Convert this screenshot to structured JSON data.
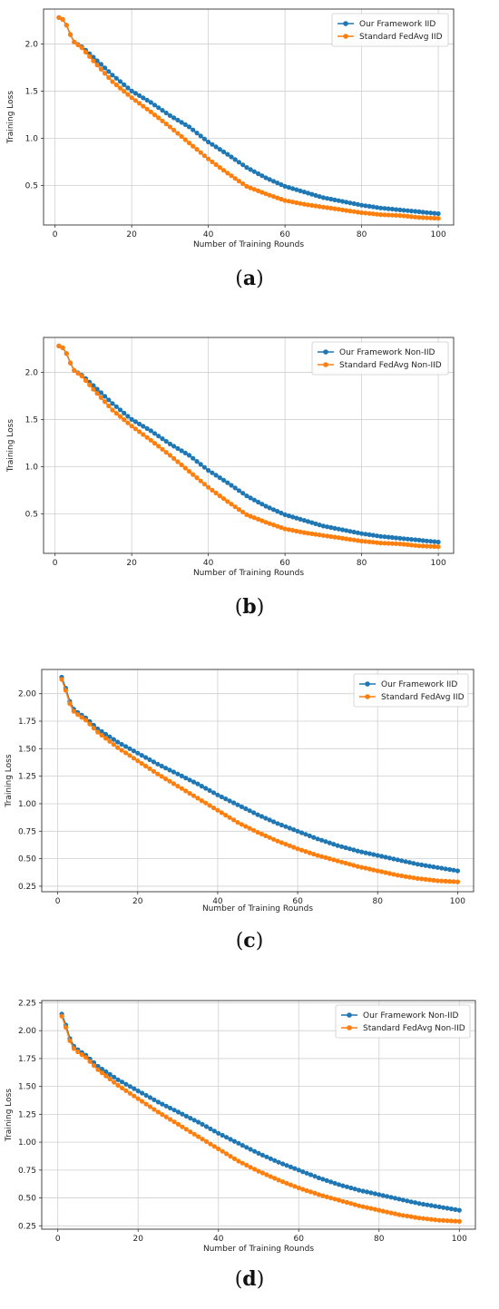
{
  "colors": {
    "series_a": "#1f77b4",
    "series_b": "#ff7f0e",
    "grid": "#cfcfcf",
    "axes": "#333333"
  },
  "captions": [
    "a",
    "b",
    "c",
    "d"
  ],
  "chart_data": [
    {
      "type": "line",
      "caption": "a",
      "xlabel": "Number of Training Rounds",
      "ylabel": "Training Loss",
      "xlim": [
        -3,
        104
      ],
      "ylim": [
        0.08,
        2.37
      ],
      "xticks": [
        0,
        20,
        40,
        60,
        80,
        100
      ],
      "yticks": [
        0.5,
        1.0,
        1.5,
        2.0
      ],
      "ytick_labels": [
        "0.5",
        "1.0",
        "1.5",
        "2.0"
      ],
      "grid": true,
      "legend_position": "top-right",
      "x_range": [
        1,
        100
      ],
      "series": [
        {
          "name": "Our Framework IID",
          "color": "#1f77b4",
          "marker": "circle",
          "anchors": [
            [
              1,
              2.28
            ],
            [
              2,
              2.26
            ],
            [
              3,
              2.2
            ],
            [
              4,
              2.1
            ],
            [
              5,
              2.02
            ],
            [
              7,
              1.97
            ],
            [
              10,
              1.86
            ],
            [
              15,
              1.67
            ],
            [
              20,
              1.5
            ],
            [
              25,
              1.38
            ],
            [
              30,
              1.24
            ],
            [
              35,
              1.12
            ],
            [
              40,
              0.96
            ],
            [
              45,
              0.83
            ],
            [
              50,
              0.69
            ],
            [
              55,
              0.58
            ],
            [
              60,
              0.49
            ],
            [
              65,
              0.43
            ],
            [
              70,
              0.37
            ],
            [
              75,
              0.33
            ],
            [
              80,
              0.29
            ],
            [
              85,
              0.26
            ],
            [
              90,
              0.24
            ],
            [
              95,
              0.22
            ],
            [
              100,
              0.2
            ]
          ]
        },
        {
          "name": "Standard FedAvg IID",
          "color": "#ff7f0e",
          "marker": "circle",
          "anchors": [
            [
              1,
              2.28
            ],
            [
              2,
              2.26
            ],
            [
              3,
              2.2
            ],
            [
              4,
              2.1
            ],
            [
              5,
              2.02
            ],
            [
              7,
              1.96
            ],
            [
              10,
              1.82
            ],
            [
              15,
              1.6
            ],
            [
              20,
              1.43
            ],
            [
              25,
              1.28
            ],
            [
              30,
              1.12
            ],
            [
              35,
              0.95
            ],
            [
              40,
              0.78
            ],
            [
              45,
              0.63
            ],
            [
              50,
              0.49
            ],
            [
              55,
              0.41
            ],
            [
              60,
              0.34
            ],
            [
              65,
              0.3
            ],
            [
              70,
              0.27
            ],
            [
              75,
              0.24
            ],
            [
              80,
              0.21
            ],
            [
              85,
              0.19
            ],
            [
              90,
              0.18
            ],
            [
              95,
              0.16
            ],
            [
              100,
              0.15
            ]
          ]
        }
      ]
    },
    {
      "type": "line",
      "caption": "b",
      "xlabel": "Number of Training Rounds",
      "ylabel": "Training Loss",
      "xlim": [
        -3,
        104
      ],
      "ylim": [
        0.08,
        2.37
      ],
      "xticks": [
        0,
        20,
        40,
        60,
        80,
        100
      ],
      "yticks": [
        0.5,
        1.0,
        1.5,
        2.0
      ],
      "ytick_labels": [
        "0.5",
        "1.0",
        "1.5",
        "2.0"
      ],
      "grid": true,
      "legend_position": "top-right",
      "x_range": [
        1,
        100
      ],
      "series": [
        {
          "name": "Our Framework Non-IID",
          "color": "#1f77b4",
          "marker": "circle",
          "anchors": [
            [
              1,
              2.28
            ],
            [
              2,
              2.26
            ],
            [
              3,
              2.2
            ],
            [
              4,
              2.1
            ],
            [
              5,
              2.02
            ],
            [
              7,
              1.97
            ],
            [
              10,
              1.86
            ],
            [
              15,
              1.67
            ],
            [
              20,
              1.5
            ],
            [
              25,
              1.38
            ],
            [
              30,
              1.24
            ],
            [
              35,
              1.12
            ],
            [
              40,
              0.96
            ],
            [
              45,
              0.83
            ],
            [
              50,
              0.69
            ],
            [
              55,
              0.58
            ],
            [
              60,
              0.49
            ],
            [
              65,
              0.43
            ],
            [
              70,
              0.37
            ],
            [
              75,
              0.33
            ],
            [
              80,
              0.29
            ],
            [
              85,
              0.26
            ],
            [
              90,
              0.24
            ],
            [
              95,
              0.22
            ],
            [
              100,
              0.2
            ]
          ]
        },
        {
          "name": "Standard FedAvg Non-IID",
          "color": "#ff7f0e",
          "marker": "circle",
          "anchors": [
            [
              1,
              2.28
            ],
            [
              2,
              2.26
            ],
            [
              3,
              2.2
            ],
            [
              4,
              2.1
            ],
            [
              5,
              2.02
            ],
            [
              7,
              1.96
            ],
            [
              10,
              1.82
            ],
            [
              15,
              1.6
            ],
            [
              20,
              1.43
            ],
            [
              25,
              1.28
            ],
            [
              30,
              1.12
            ],
            [
              35,
              0.95
            ],
            [
              40,
              0.78
            ],
            [
              45,
              0.63
            ],
            [
              50,
              0.49
            ],
            [
              55,
              0.41
            ],
            [
              60,
              0.34
            ],
            [
              65,
              0.3
            ],
            [
              70,
              0.27
            ],
            [
              75,
              0.24
            ],
            [
              80,
              0.21
            ],
            [
              85,
              0.19
            ],
            [
              90,
              0.18
            ],
            [
              95,
              0.16
            ],
            [
              100,
              0.15
            ]
          ]
        }
      ]
    },
    {
      "type": "line",
      "caption": "c",
      "xlabel": "Number of Training Rounds",
      "ylabel": "Training Loss",
      "xlim": [
        -4,
        104
      ],
      "ylim": [
        0.2,
        2.22
      ],
      "xticks": [
        0,
        20,
        40,
        60,
        80,
        100
      ],
      "yticks": [
        0.25,
        0.5,
        0.75,
        1.0,
        1.25,
        1.5,
        1.75,
        2.0
      ],
      "ytick_labels": [
        "0.25",
        "0.50",
        "0.75",
        "1.00",
        "1.25",
        "1.50",
        "1.75",
        "2.00"
      ],
      "grid": true,
      "legend_position": "top-right",
      "x_range": [
        1,
        100
      ],
      "series": [
        {
          "name": "Our Framework IID",
          "color": "#1f77b4",
          "marker": "circle",
          "anchors": [
            [
              1,
              2.15
            ],
            [
              2,
              2.05
            ],
            [
              3,
              1.93
            ],
            [
              4,
              1.86
            ],
            [
              5,
              1.83
            ],
            [
              7,
              1.78
            ],
            [
              10,
              1.68
            ],
            [
              15,
              1.56
            ],
            [
              20,
              1.46
            ],
            [
              25,
              1.36
            ],
            [
              30,
              1.27
            ],
            [
              35,
              1.18
            ],
            [
              40,
              1.08
            ],
            [
              45,
              0.99
            ],
            [
              50,
              0.9
            ],
            [
              55,
              0.82
            ],
            [
              60,
              0.75
            ],
            [
              65,
              0.68
            ],
            [
              70,
              0.62
            ],
            [
              75,
              0.57
            ],
            [
              80,
              0.53
            ],
            [
              85,
              0.49
            ],
            [
              90,
              0.45
            ],
            [
              95,
              0.42
            ],
            [
              100,
              0.39
            ]
          ]
        },
        {
          "name": "Standard FedAvg IID",
          "color": "#ff7f0e",
          "marker": "circle",
          "anchors": [
            [
              1,
              2.13
            ],
            [
              2,
              2.03
            ],
            [
              3,
              1.91
            ],
            [
              4,
              1.84
            ],
            [
              5,
              1.81
            ],
            [
              7,
              1.76
            ],
            [
              10,
              1.65
            ],
            [
              15,
              1.51
            ],
            [
              20,
              1.39
            ],
            [
              25,
              1.27
            ],
            [
              30,
              1.16
            ],
            [
              35,
              1.05
            ],
            [
              40,
              0.94
            ],
            [
              45,
              0.83
            ],
            [
              50,
              0.74
            ],
            [
              55,
              0.66
            ],
            [
              60,
              0.59
            ],
            [
              65,
              0.53
            ],
            [
              70,
              0.48
            ],
            [
              75,
              0.43
            ],
            [
              80,
              0.39
            ],
            [
              85,
              0.35
            ],
            [
              90,
              0.32
            ],
            [
              95,
              0.3
            ],
            [
              100,
              0.29
            ]
          ]
        }
      ]
    },
    {
      "type": "line",
      "caption": "d",
      "xlabel": "Number of Training Rounds",
      "ylabel": "Training Loss",
      "xlim": [
        -4,
        104
      ],
      "ylim": [
        0.22,
        2.27
      ],
      "xticks": [
        0,
        20,
        40,
        60,
        80,
        100
      ],
      "yticks": [
        0.25,
        0.5,
        0.75,
        1.0,
        1.25,
        1.5,
        1.75,
        2.0,
        2.25
      ],
      "ytick_labels": [
        "0.25",
        "0.50",
        "0.75",
        "1.00",
        "1.25",
        "1.50",
        "1.75",
        "2.00",
        "2.25"
      ],
      "grid": true,
      "legend_position": "top-right",
      "x_range": [
        1,
        100
      ],
      "series": [
        {
          "name": "Our Framework Non-IID",
          "color": "#1f77b4",
          "marker": "circle",
          "anchors": [
            [
              1,
              2.15
            ],
            [
              2,
              2.05
            ],
            [
              3,
              1.93
            ],
            [
              4,
              1.86
            ],
            [
              5,
              1.83
            ],
            [
              7,
              1.78
            ],
            [
              10,
              1.68
            ],
            [
              15,
              1.56
            ],
            [
              20,
              1.46
            ],
            [
              25,
              1.36
            ],
            [
              30,
              1.27
            ],
            [
              35,
              1.18
            ],
            [
              40,
              1.08
            ],
            [
              45,
              0.99
            ],
            [
              50,
              0.9
            ],
            [
              55,
              0.82
            ],
            [
              60,
              0.75
            ],
            [
              65,
              0.68
            ],
            [
              70,
              0.62
            ],
            [
              75,
              0.57
            ],
            [
              80,
              0.53
            ],
            [
              85,
              0.49
            ],
            [
              90,
              0.45
            ],
            [
              95,
              0.42
            ],
            [
              100,
              0.39
            ]
          ]
        },
        {
          "name": "Standard FedAvg Non-IID",
          "color": "#ff7f0e",
          "marker": "circle",
          "anchors": [
            [
              1,
              2.13
            ],
            [
              2,
              2.03
            ],
            [
              3,
              1.91
            ],
            [
              4,
              1.84
            ],
            [
              5,
              1.81
            ],
            [
              7,
              1.76
            ],
            [
              10,
              1.65
            ],
            [
              15,
              1.51
            ],
            [
              20,
              1.39
            ],
            [
              25,
              1.27
            ],
            [
              30,
              1.16
            ],
            [
              35,
              1.05
            ],
            [
              40,
              0.94
            ],
            [
              45,
              0.83
            ],
            [
              50,
              0.74
            ],
            [
              55,
              0.66
            ],
            [
              60,
              0.59
            ],
            [
              65,
              0.53
            ],
            [
              70,
              0.48
            ],
            [
              75,
              0.43
            ],
            [
              80,
              0.39
            ],
            [
              85,
              0.35
            ],
            [
              90,
              0.32
            ],
            [
              95,
              0.3
            ],
            [
              100,
              0.29
            ]
          ]
        }
      ]
    }
  ]
}
